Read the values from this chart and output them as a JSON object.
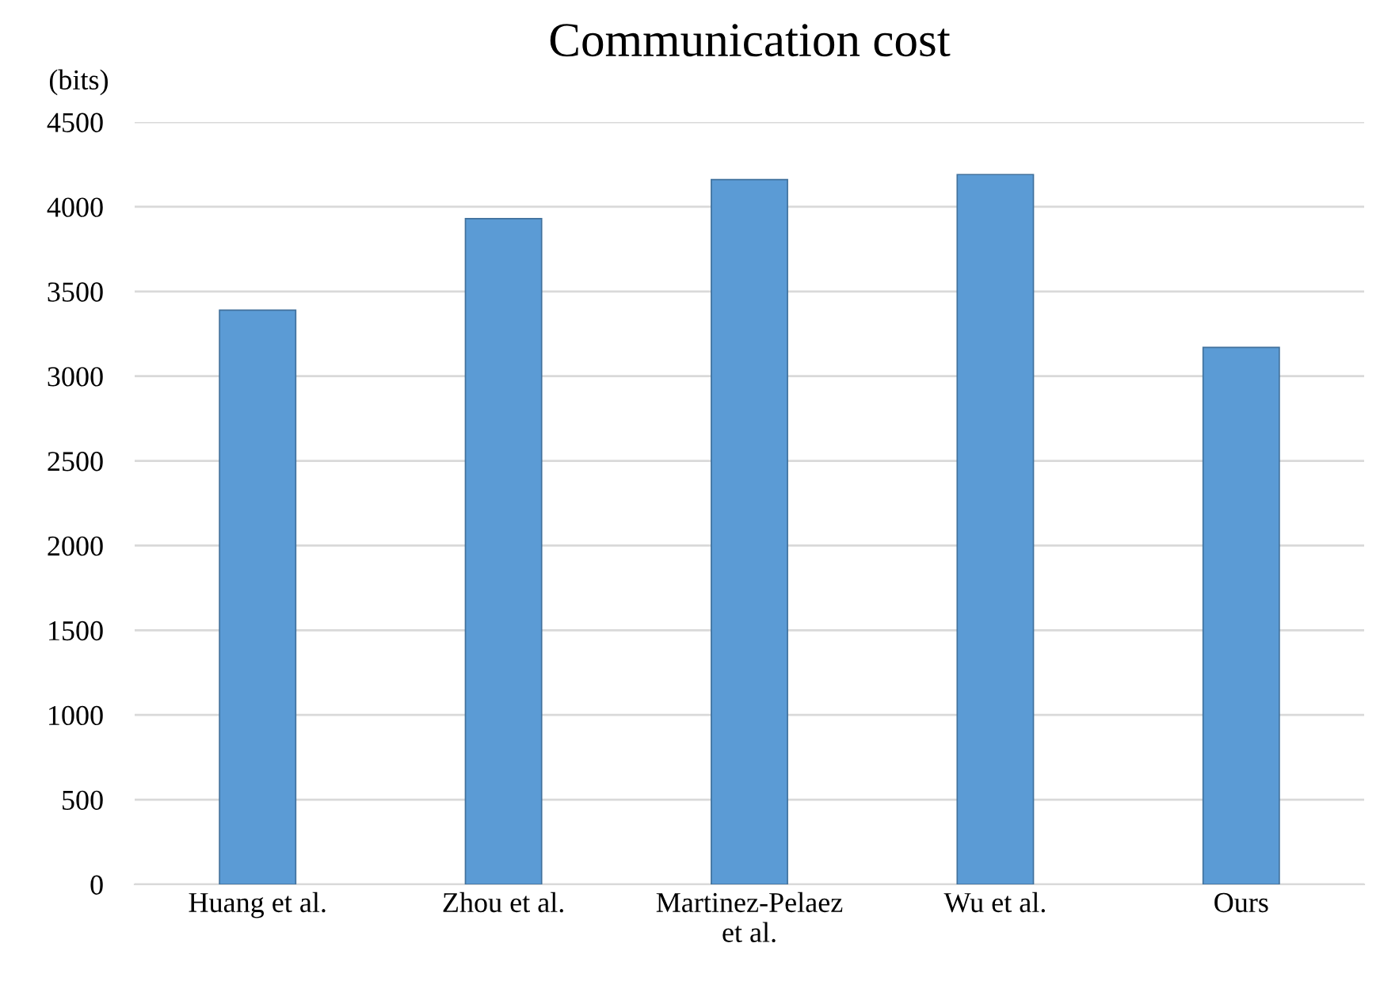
{
  "chart_data": {
    "type": "bar",
    "title": "Communication cost",
    "ylabel": "(bits)",
    "categories": [
      "Huang et al.",
      "Zhou et al.",
      "Martinez-Pelaez\net al.",
      "Wu et al.",
      "Ours"
    ],
    "values": [
      3390,
      3930,
      4160,
      4190,
      3170
    ],
    "color": "#5b9bd5",
    "ylim": [
      0,
      4500
    ],
    "yticks": [
      0,
      500,
      1000,
      1500,
      2000,
      2500,
      3000,
      3500,
      4000,
      4500
    ],
    "grid": "y",
    "legend": false
  }
}
